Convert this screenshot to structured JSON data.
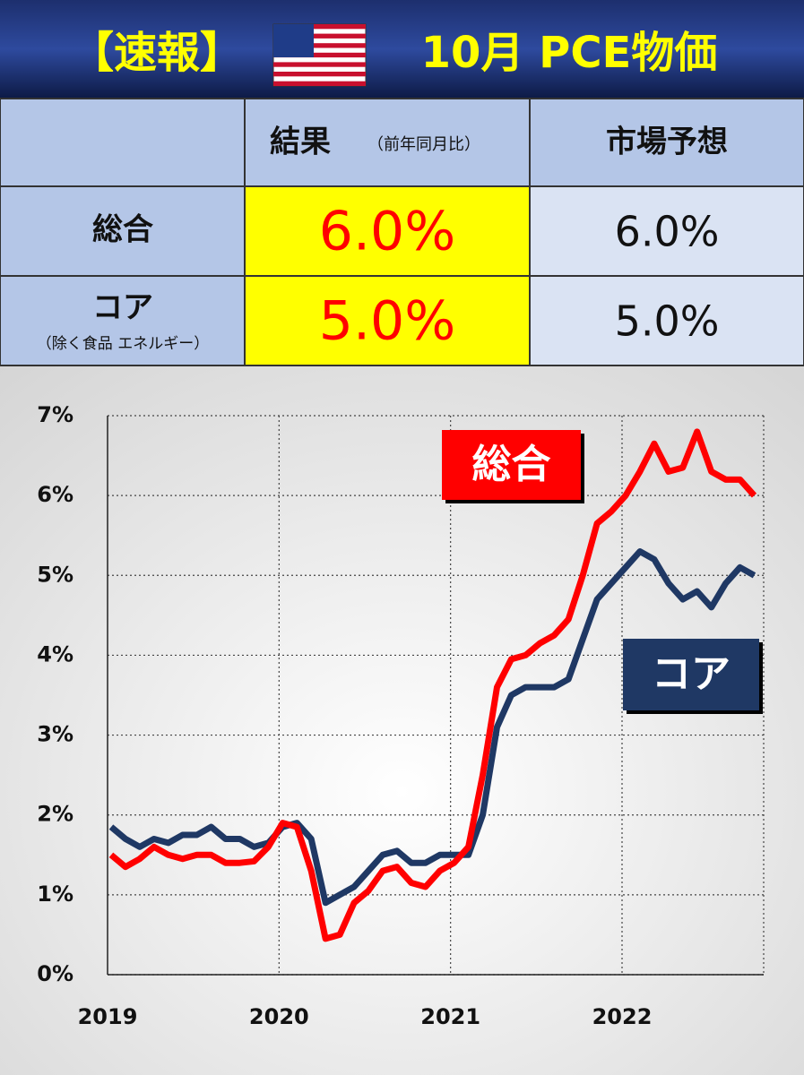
{
  "header": {
    "tag": "【速報】",
    "title": "10月 PCE物価"
  },
  "table": {
    "columns": [
      "結果",
      "（前年同月比）",
      "市場予想"
    ],
    "rows": [
      {
        "label": "総合",
        "result": "6.0%",
        "forecast": "6.0%"
      },
      {
        "label": "コア",
        "sublabel": "（除く食品 エネルギー）",
        "result": "5.0%",
        "forecast": "5.0%"
      }
    ]
  },
  "chart_data": {
    "type": "line",
    "categories": [
      "2019",
      null,
      null,
      null,
      null,
      null,
      null,
      null,
      null,
      null,
      null,
      null,
      "2020",
      null,
      null,
      null,
      null,
      null,
      null,
      null,
      null,
      null,
      null,
      null,
      "2021",
      null,
      null,
      null,
      null,
      null,
      null,
      null,
      null,
      null,
      null,
      null,
      "2022",
      null,
      null,
      null,
      null,
      null,
      null,
      null,
      null,
      null
    ],
    "series": [
      {
        "name": "総合",
        "color": "#ff0000",
        "values": [
          1.5,
          1.35,
          1.45,
          1.6,
          1.5,
          1.45,
          1.5,
          1.5,
          1.4,
          1.4,
          1.42,
          1.6,
          1.9,
          1.85,
          1.3,
          0.45,
          0.5,
          0.9,
          1.05,
          1.3,
          1.35,
          1.15,
          1.1,
          1.3,
          1.4,
          1.6,
          2.5,
          3.6,
          3.95,
          4.0,
          4.15,
          4.25,
          4.45,
          5.0,
          5.65,
          5.8,
          6.0,
          6.3,
          6.65,
          6.3,
          6.35,
          6.8,
          6.3,
          6.2,
          6.2,
          6.0
        ]
      },
      {
        "name": "コア",
        "color": "#1f3864",
        "values": [
          1.85,
          1.7,
          1.6,
          1.7,
          1.65,
          1.75,
          1.75,
          1.85,
          1.7,
          1.7,
          1.6,
          1.65,
          1.85,
          1.9,
          1.7,
          0.9,
          1.0,
          1.1,
          1.3,
          1.5,
          1.55,
          1.4,
          1.4,
          1.5,
          1.5,
          1.5,
          2.0,
          3.1,
          3.5,
          3.6,
          3.6,
          3.6,
          3.7,
          4.2,
          4.7,
          4.9,
          5.1,
          5.3,
          5.2,
          4.9,
          4.7,
          4.8,
          4.6,
          4.9,
          5.1,
          5.0
        ]
      }
    ],
    "ylim": [
      0,
      7
    ],
    "yticks": [
      {
        "value": 0,
        "label": "0%"
      },
      {
        "value": 1,
        "label": "1%"
      },
      {
        "value": 2,
        "label": "2%"
      },
      {
        "value": 3,
        "label": "3%"
      },
      {
        "value": 4,
        "label": "4%"
      },
      {
        "value": 5,
        "label": "5%"
      },
      {
        "value": 6,
        "label": "6%"
      },
      {
        "value": 7,
        "label": "7%"
      }
    ],
    "grid": true
  }
}
